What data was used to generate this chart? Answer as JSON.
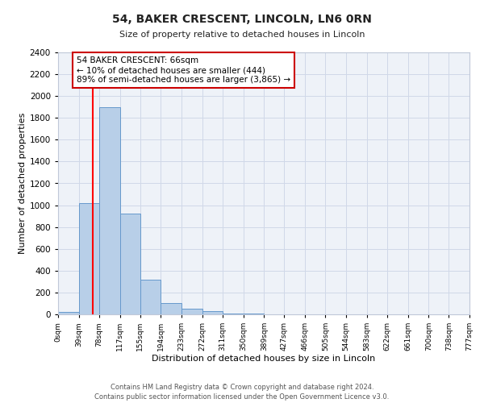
{
  "title": "54, BAKER CRESCENT, LINCOLN, LN6 0RN",
  "subtitle": "Size of property relative to detached houses in Lincoln",
  "xlabel": "Distribution of detached houses by size in Lincoln",
  "ylabel": "Number of detached properties",
  "bar_left_edges": [
    0,
    39,
    78,
    117,
    155,
    194,
    233,
    272,
    311,
    350,
    389,
    427,
    466,
    505,
    544,
    583,
    622,
    661,
    700,
    738
  ],
  "bar_heights": [
    20,
    1020,
    1900,
    920,
    320,
    105,
    50,
    30,
    10,
    5,
    0,
    0,
    0,
    0,
    0,
    0,
    0,
    0,
    0,
    0
  ],
  "bin_width": 39,
  "bar_color": "#b8cfe8",
  "bar_edge_color": "#6699cc",
  "x_tick_labels": [
    "0sqm",
    "39sqm",
    "78sqm",
    "117sqm",
    "155sqm",
    "194sqm",
    "233sqm",
    "272sqm",
    "311sqm",
    "350sqm",
    "389sqm",
    "427sqm",
    "466sqm",
    "505sqm",
    "544sqm",
    "583sqm",
    "622sqm",
    "661sqm",
    "700sqm",
    "738sqm",
    "777sqm"
  ],
  "ylim": [
    0,
    2400
  ],
  "yticks": [
    0,
    200,
    400,
    600,
    800,
    1000,
    1200,
    1400,
    1600,
    1800,
    2000,
    2200,
    2400
  ],
  "red_line_x": 66,
  "annotation_title": "54 BAKER CRESCENT: 66sqm",
  "annotation_line1": "← 10% of detached houses are smaller (444)",
  "annotation_line2": "89% of semi-detached houses are larger (3,865) →",
  "annotation_box_color": "#ffffff",
  "annotation_box_edge_color": "#cc0000",
  "grid_color": "#d0d8e8",
  "bg_color": "#eef2f8",
  "footer_line1": "Contains HM Land Registry data © Crown copyright and database right 2024.",
  "footer_line2": "Contains public sector information licensed under the Open Government Licence v3.0."
}
